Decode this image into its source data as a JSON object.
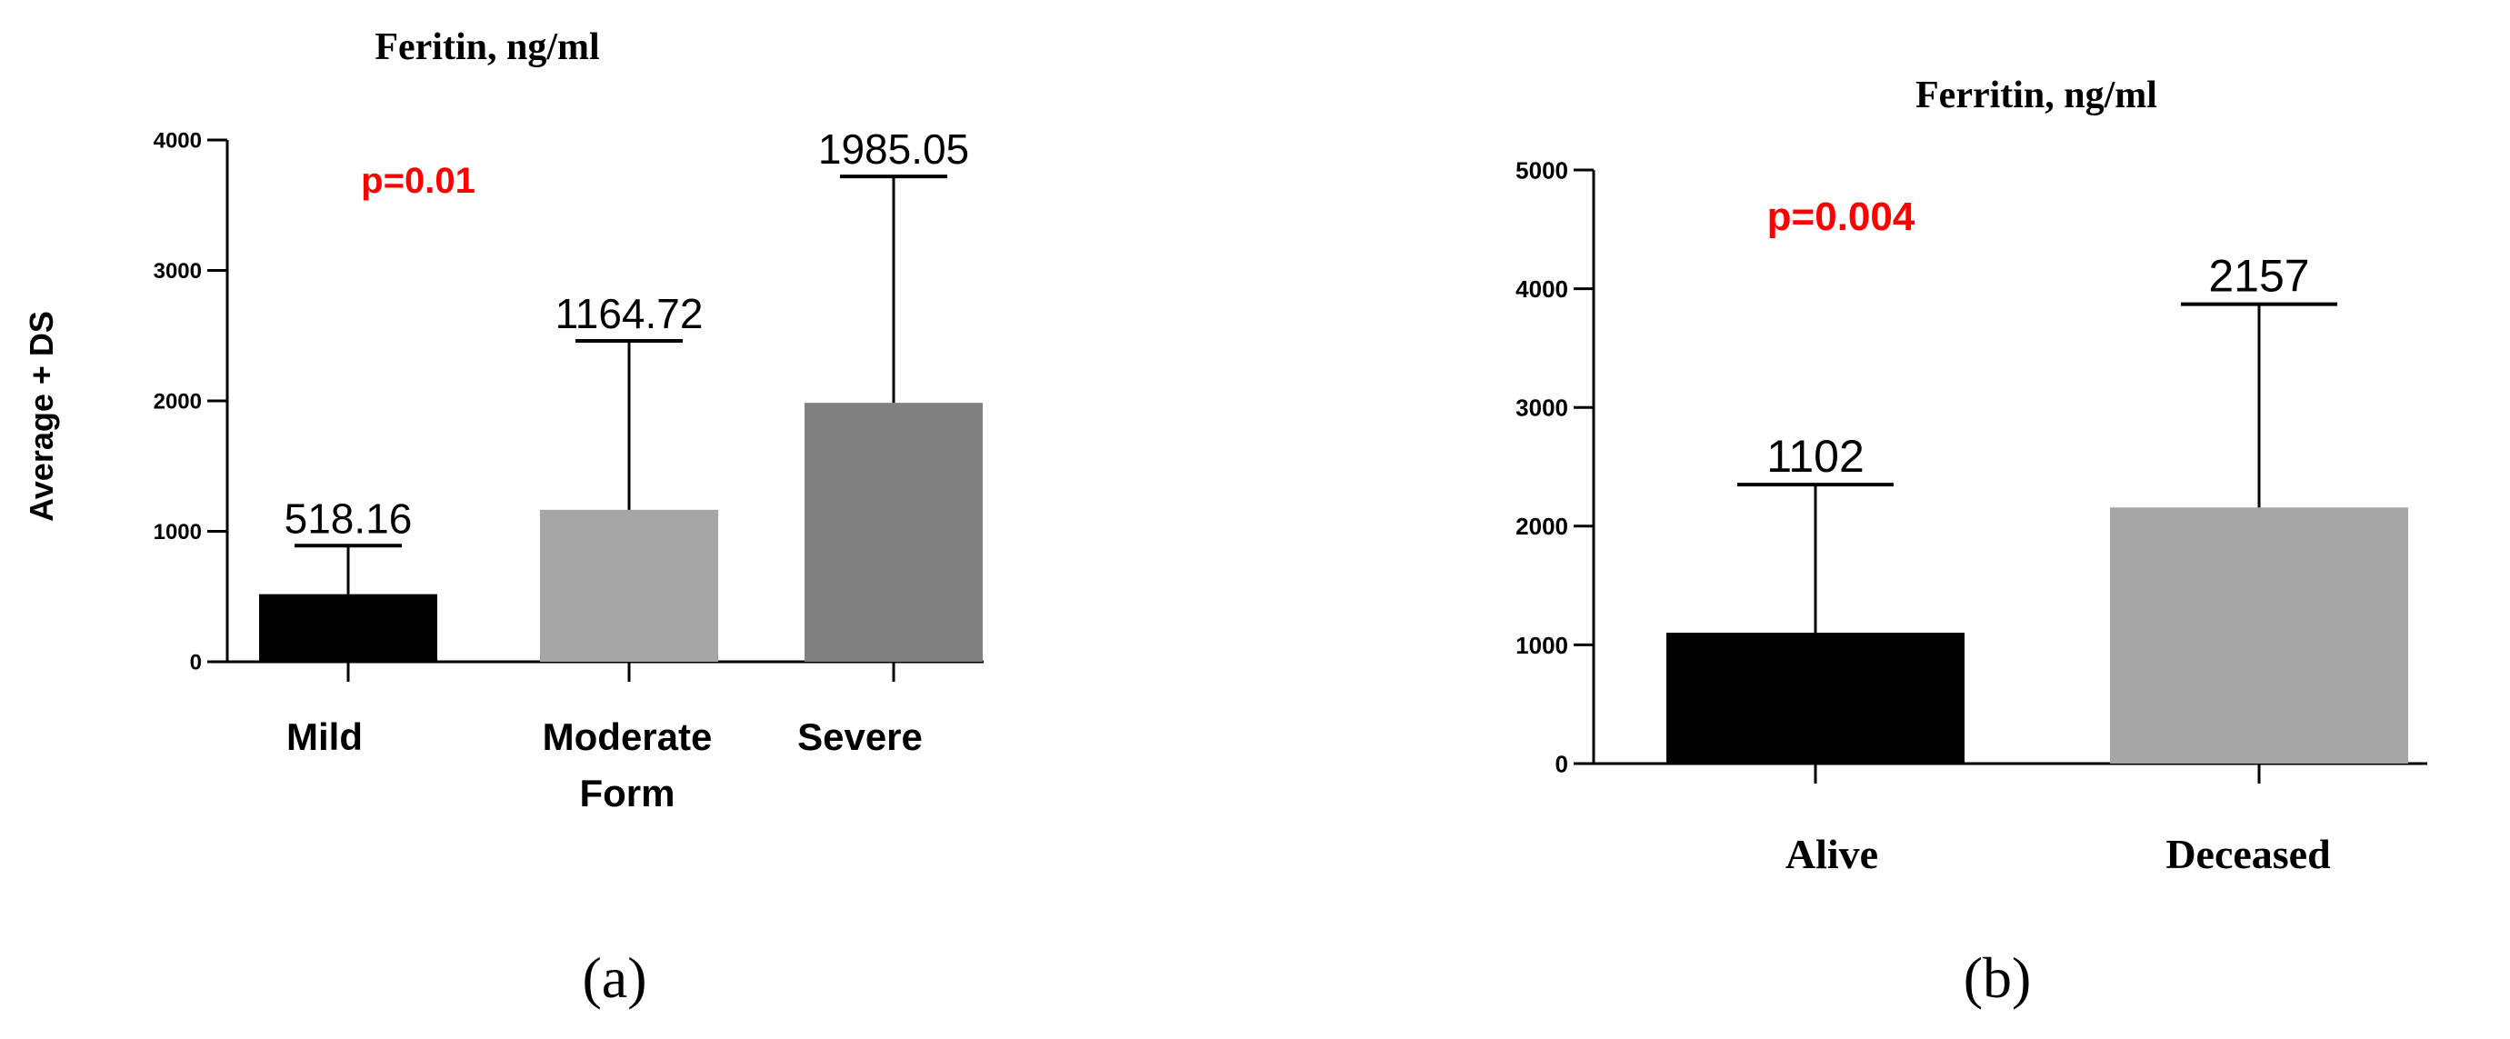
{
  "panels": [
    {
      "caption": "(a)",
      "chart_data": {
        "type": "bar",
        "title": "Feritin, ng/ml",
        "ylabel": "Average + DS",
        "xlabel": "",
        "categories": [
          "Mild",
          "Moderate Form",
          "Severe"
        ],
        "category_lines": [
          [
            "Mild"
          ],
          [
            "Moderate",
            "Form"
          ],
          [
            "Severe"
          ]
        ],
        "values": [
          518.16,
          1164.72,
          1985.05
        ],
        "value_labels": [
          "518.16",
          "1164.72",
          "1985.05"
        ],
        "error_upper": [
          890,
          2460,
          3720
        ],
        "bar_colors": [
          "#000000",
          "#a6a6a6",
          "#808080"
        ],
        "ylim": [
          0,
          4000
        ],
        "yticks": [
          0,
          1000,
          2000,
          3000,
          4000
        ],
        "annotation": "p=0.01",
        "annotation_color": "#ff0000",
        "grid": false,
        "legend": "none"
      }
    },
    {
      "caption": "(b)",
      "chart_data": {
        "type": "bar",
        "title": "Ferritin, ng/ml",
        "ylabel": "",
        "xlabel": "",
        "categories": [
          "Alive",
          "Deceased"
        ],
        "category_lines": [
          [
            "Alive"
          ],
          [
            "Deceased"
          ]
        ],
        "values": [
          1102,
          2157
        ],
        "value_labels": [
          "1102",
          "2157"
        ],
        "error_upper": [
          2350,
          3870
        ],
        "bar_colors": [
          "#000000",
          "#a6a6a6"
        ],
        "ylim": [
          0,
          5000
        ],
        "yticks": [
          0,
          1000,
          2000,
          3000,
          4000,
          5000
        ],
        "annotation": "p=0.004",
        "annotation_color": "#ff0000",
        "grid": false,
        "legend": "none"
      }
    }
  ]
}
